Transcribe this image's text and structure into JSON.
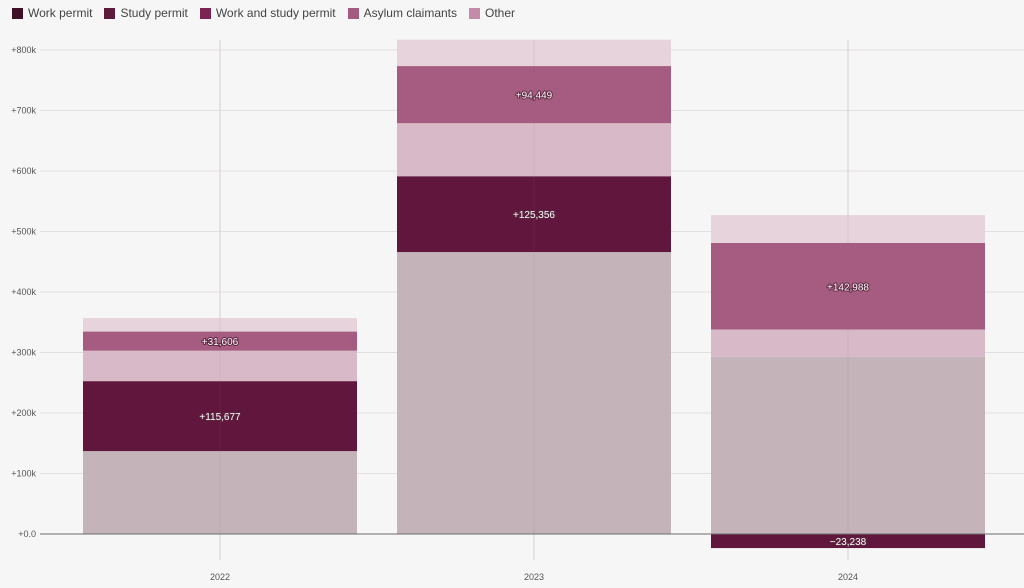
{
  "chart_data": {
    "type": "bar",
    "stacked": true,
    "categories": [
      "2022",
      "2023",
      "2024"
    ],
    "legend": [
      {
        "name": "Work permit",
        "color": "#3d1028"
      },
      {
        "name": "Study permit",
        "color": "#5e1a3b"
      },
      {
        "name": "Work and study permit",
        "color": "#7b2352"
      },
      {
        "name": "Asylum claimants",
        "color": "#a35c80"
      },
      {
        "name": "Other",
        "color": "#c58aa7"
      }
    ],
    "yticks": [
      "+0.0",
      "+100k",
      "+200k",
      "+300k",
      "+400k",
      "+500k",
      "+600k",
      "+700k",
      "+800k"
    ],
    "ylim": [
      -40000,
      830000
    ],
    "grid": true,
    "segments": [
      [
        {
          "from": 0,
          "to": 137000,
          "color": "#c4b4ba",
          "label": ""
        },
        {
          "from": 137000,
          "to": 252677,
          "color": "#61173d",
          "label": "+115,677"
        },
        {
          "from": 252677,
          "to": 303000,
          "color": "#d8b9c8",
          "label": ""
        },
        {
          "from": 303000,
          "to": 334606,
          "color": "#a65c81",
          "label": "+31,606"
        },
        {
          "from": 334606,
          "to": 357000,
          "color": "#e6d3dc",
          "label": ""
        }
      ],
      [
        {
          "from": 0,
          "to": 466000,
          "color": "#c4b4ba",
          "label": ""
        },
        {
          "from": 466000,
          "to": 591356,
          "color": "#61173d",
          "label": "+125,356"
        },
        {
          "from": 591356,
          "to": 679000,
          "color": "#d8b9c8",
          "label": ""
        },
        {
          "from": 679000,
          "to": 773449,
          "color": "#a65c81",
          "label": "+94,449"
        },
        {
          "from": 773449,
          "to": 817000,
          "color": "#e6d3dc",
          "label": ""
        }
      ],
      [
        {
          "from": 0,
          "to": 293000,
          "color": "#c4b4ba",
          "label": ""
        },
        {
          "from": -23238,
          "to": 0,
          "color": "#61173d",
          "label": "−23,238"
        },
        {
          "from": 293000,
          "to": 338000,
          "color": "#d8b9c8",
          "label": ""
        },
        {
          "from": 338000,
          "to": 480988,
          "color": "#a65c81",
          "label": "+142,988"
        },
        {
          "from": 480988,
          "to": 527000,
          "color": "#e6d3dc",
          "label": ""
        }
      ]
    ]
  }
}
